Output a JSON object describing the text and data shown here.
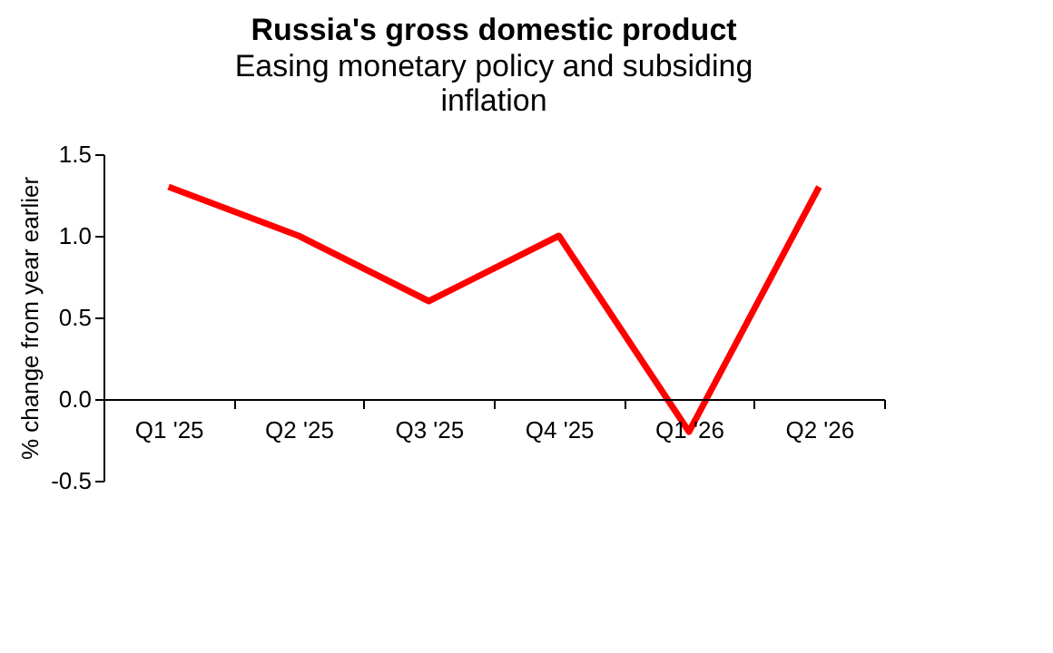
{
  "chart_data": {
    "type": "line",
    "title": "Russia's gross domestic product",
    "subtitle": "Easing monetary policy and subsiding inflation",
    "ylabel": "% change from year earlier",
    "categories": [
      "Q1 '25",
      "Q2 '25",
      "Q3 '25",
      "Q4 '25",
      "Q1 '26",
      "Q2 '26"
    ],
    "series": [
      {
        "color": "#ff0000",
        "values": [
          1.3,
          1.0,
          0.6,
          1.0,
          -0.2,
          1.3
        ]
      }
    ],
    "ylim": [
      -0.5,
      1.5
    ],
    "yticks": [
      -0.5,
      {
        "value": 0,
        "label": "0.0"
      },
      0.5,
      {
        "value": 1,
        "label": "1.0"
      },
      1.5
    ],
    "grid": false,
    "marker": "none",
    "line_style": "solid"
  }
}
